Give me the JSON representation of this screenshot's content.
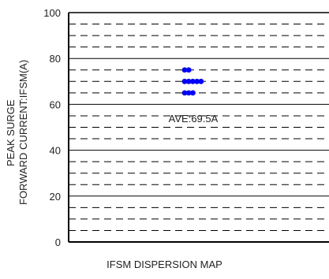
{
  "chart_data": {
    "type": "scatter",
    "xlabel": "IFSM DISPERSION MAP",
    "ylabel_lines": [
      "PEAK SURGE",
      "FORWARD CURRENT:IFSM(A)"
    ],
    "ylim": [
      0,
      100
    ],
    "yticks": [
      0,
      20,
      40,
      60,
      80,
      100
    ],
    "grid": {
      "solid_lines": [
        20,
        40,
        60,
        80
      ],
      "dashed_lines": [
        5,
        10,
        15,
        25,
        30,
        35,
        45,
        50,
        55,
        65,
        70,
        75,
        85,
        90,
        95
      ]
    },
    "points": [
      {
        "x": 0,
        "y": 75
      },
      {
        "x": 1,
        "y": 75
      },
      {
        "x": 0,
        "y": 70
      },
      {
        "x": 1,
        "y": 70
      },
      {
        "x": 2,
        "y": 70
      },
      {
        "x": 3,
        "y": 70
      },
      {
        "x": 4,
        "y": 70
      },
      {
        "x": 0,
        "y": 65
      },
      {
        "x": 1,
        "y": 65
      },
      {
        "x": 2,
        "y": 65
      }
    ],
    "annotation": {
      "text": "AVE:69.5A",
      "y": 54
    },
    "colors": {
      "points": "#0000ff",
      "axis": "#000000",
      "grid": "#000000"
    }
  }
}
